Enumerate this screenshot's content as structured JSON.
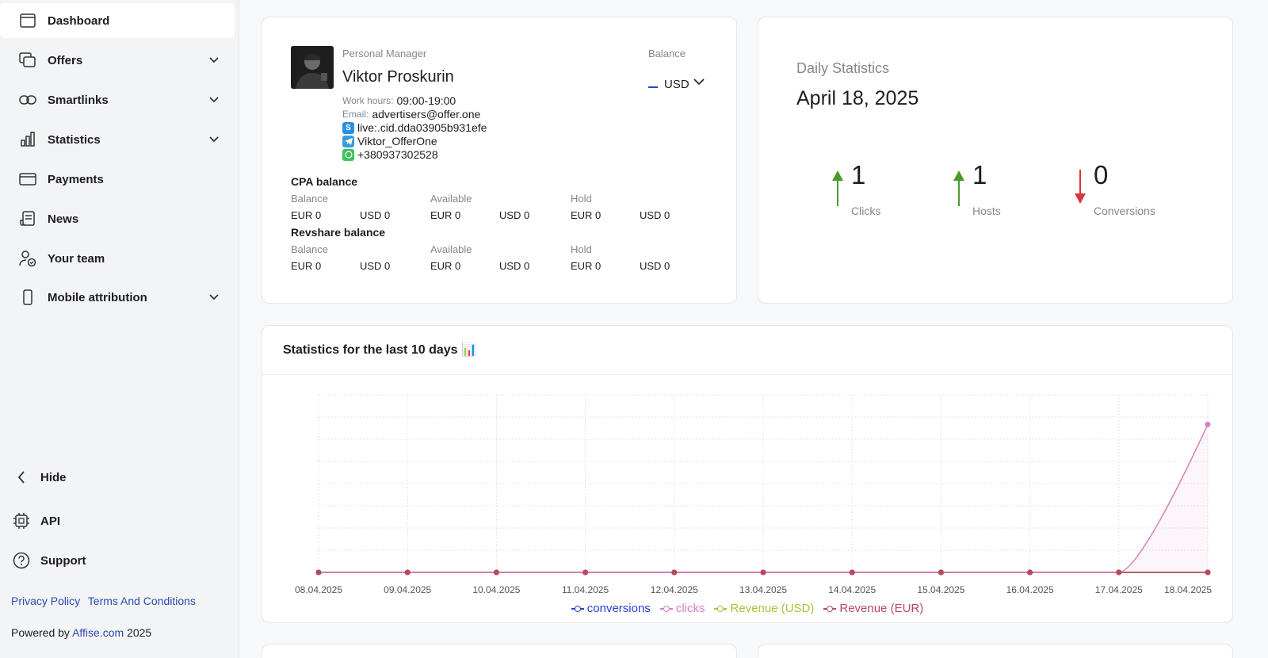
{
  "sidebar": {
    "items": [
      {
        "label": "Dashboard",
        "icon": "dashboard-icon",
        "active": true
      },
      {
        "label": "Offers",
        "icon": "offers-icon",
        "expandable": true
      },
      {
        "label": "Smartlinks",
        "icon": "link-icon",
        "expandable": true
      },
      {
        "label": "Statistics",
        "icon": "bar-chart-icon",
        "expandable": true
      },
      {
        "label": "Payments",
        "icon": "card-icon"
      },
      {
        "label": "News",
        "icon": "news-icon"
      },
      {
        "label": "Your team",
        "icon": "team-icon"
      },
      {
        "label": "Mobile attribution",
        "icon": "mobile-icon",
        "expandable": true
      }
    ],
    "hide_label": "Hide",
    "api_label": "API",
    "support_label": "Support",
    "privacy_label": "Privacy Policy",
    "terms_label": "Terms And Conditions",
    "powered_prefix": "Powered by",
    "powered_link": "Affise.com",
    "powered_year": "2025"
  },
  "manager": {
    "section_label": "Personal Manager",
    "name": "Viktor Proskurin",
    "work_hours_label": "Work hours:",
    "work_hours": "09:00-19:00",
    "email_label": "Email:",
    "email": "advertisers@offer.one",
    "skype": "live:.cid.dda03905b931efe",
    "telegram": "Viktor_OfferOne",
    "whatsapp": "+380937302528",
    "balance_label": "Balance",
    "currency": "USD"
  },
  "balances": {
    "cpa_title": "CPA balance",
    "revshare_title": "Revshare balance",
    "headers": [
      "Balance",
      "Available",
      "Hold"
    ],
    "cpa_values": [
      "EUR 0",
      "USD 0",
      "EUR 0",
      "USD 0",
      "EUR 0",
      "USD 0"
    ],
    "revshare_values": [
      "EUR 0",
      "USD 0",
      "EUR 0",
      "USD 0",
      "EUR 0",
      "USD 0"
    ]
  },
  "daily": {
    "title": "Daily Statistics",
    "date": "April 18, 2025",
    "metrics": [
      {
        "value": "1",
        "label": "Clicks",
        "trend": "up"
      },
      {
        "value": "1",
        "label": "Hosts",
        "trend": "up"
      },
      {
        "value": "0",
        "label": "Conversions",
        "trend": "down"
      }
    ],
    "colors": {
      "up": "#4a9a2c",
      "down": "#d63838"
    }
  },
  "stats": {
    "title": "Statistics for the last 10 days 📊"
  },
  "chart_data": {
    "type": "line",
    "x": [
      "08.04.2025",
      "09.04.2025",
      "10.04.2025",
      "11.04.2025",
      "12.04.2025",
      "13.04.2025",
      "14.04.2025",
      "15.04.2025",
      "16.04.2025",
      "17.04.2025",
      "18.04.2025"
    ],
    "series": [
      {
        "name": "conversions",
        "color": "#2a3fd0",
        "values": [
          0,
          0,
          0,
          0,
          0,
          0,
          0,
          0,
          0,
          0,
          0
        ]
      },
      {
        "name": "clicks",
        "color": "#d77fc0",
        "values": [
          0,
          0,
          0,
          0,
          0,
          0,
          0,
          0,
          0,
          0,
          1
        ]
      },
      {
        "name": "Revenue (USD)",
        "color": "#a9c23a",
        "values": [
          0,
          0,
          0,
          0,
          0,
          0,
          0,
          0,
          0,
          0,
          0
        ]
      },
      {
        "name": "Revenue (EUR)",
        "color": "#b84a5e",
        "values": [
          0,
          0,
          0,
          0,
          0,
          0,
          0,
          0,
          0,
          0,
          0
        ]
      }
    ],
    "ylim": [
      0,
      1.2
    ],
    "grid": true,
    "legend": "bottom"
  }
}
